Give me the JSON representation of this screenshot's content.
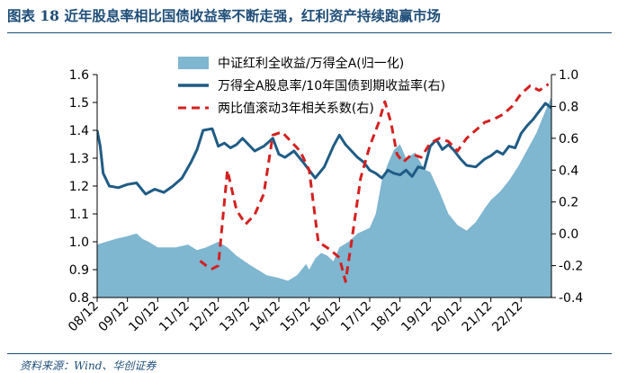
{
  "figure": {
    "title": "图表 18   近年股息率相比国债收益率不断走强，红利资产持续跑赢市场",
    "source": "资料来源：Wind、华创证券"
  },
  "colors": {
    "area": "#7fb6d0",
    "dividend_line": "#1f5c85",
    "correlation": "#d42020",
    "rule": "#1f4e79"
  },
  "chart_data": {
    "type": "area+line",
    "x_categories": [
      "08/12",
      "09/12",
      "10/12",
      "11/12",
      "12/12",
      "13/12",
      "14/12",
      "15/12",
      "16/12",
      "17/12",
      "18/12",
      "19/12",
      "20/12",
      "21/12",
      "22/12"
    ],
    "x_range": [
      0,
      15
    ],
    "y_left": {
      "min": 0.8,
      "max": 1.6,
      "step": 0.1,
      "ticks": [
        "0.8",
        "0.9",
        "1.0",
        "1.1",
        "1.2",
        "1.3",
        "1.4",
        "1.5",
        "1.6"
      ]
    },
    "y_right": {
      "min": -0.4,
      "max": 1.0,
      "step": 0.2,
      "ticks": [
        "-0.4",
        "-0.2",
        "0.0",
        "0.2",
        "0.4",
        "0.6",
        "0.8",
        "1.0"
      ]
    },
    "series": [
      {
        "name": "中证红利全收益/万得全A(归一化)",
        "type": "area",
        "axis": "left",
        "x": [
          0,
          0.3,
          0.6,
          1.0,
          1.3,
          1.5,
          1.7,
          2.0,
          2.3,
          2.6,
          3.0,
          3.3,
          3.6,
          4.0,
          4.3,
          4.6,
          5.0,
          5.3,
          5.6,
          6.0,
          6.3,
          6.6,
          6.9,
          7.0,
          7.2,
          7.4,
          7.6,
          7.8,
          8.0,
          8.3,
          8.6,
          9.0,
          9.2,
          9.4,
          9.6,
          9.8,
          10.0,
          10.2,
          10.5,
          10.8,
          11.0,
          11.3,
          11.6,
          11.9,
          12.2,
          12.5,
          12.8,
          13.0,
          13.3,
          13.6,
          13.9,
          14.2,
          14.5,
          14.8,
          15.0
        ],
        "y": [
          0.99,
          1.0,
          1.01,
          1.02,
          1.03,
          1.01,
          1.0,
          0.98,
          0.98,
          0.98,
          0.99,
          0.97,
          0.98,
          1.0,
          0.98,
          0.95,
          0.92,
          0.9,
          0.88,
          0.87,
          0.86,
          0.88,
          0.92,
          0.9,
          0.94,
          0.96,
          0.95,
          0.93,
          0.98,
          1.0,
          1.03,
          1.05,
          1.1,
          1.22,
          1.28,
          1.33,
          1.35,
          1.3,
          1.32,
          1.26,
          1.25,
          1.18,
          1.1,
          1.06,
          1.04,
          1.07,
          1.12,
          1.15,
          1.18,
          1.22,
          1.27,
          1.33,
          1.39,
          1.47,
          1.52
        ]
      },
      {
        "name": "万得全A股息率/10年国债到期收益率(右)",
        "type": "line",
        "axis": "right",
        "x": [
          0,
          0.1,
          0.2,
          0.4,
          0.7,
          1.0,
          1.3,
          1.6,
          1.9,
          2.2,
          2.5,
          2.8,
          3.1,
          3.3,
          3.5,
          3.8,
          4.0,
          4.2,
          4.4,
          4.6,
          4.8,
          5.0,
          5.2,
          5.5,
          5.8,
          6.0,
          6.2,
          6.5,
          6.8,
          7.0,
          7.2,
          7.5,
          7.8,
          8.0,
          8.2,
          8.4,
          8.6,
          8.8,
          9.0,
          9.2,
          9.4,
          9.6,
          9.8,
          10.0,
          10.2,
          10.4,
          10.6,
          10.8,
          11.0,
          11.2,
          11.4,
          11.6,
          11.8,
          12.0,
          12.2,
          12.5,
          12.8,
          13.0,
          13.2,
          13.4,
          13.6,
          13.8,
          14.0,
          14.2,
          14.4,
          14.6,
          14.8,
          15.0
        ],
        "y": [
          0.65,
          0.55,
          0.38,
          0.3,
          0.29,
          0.31,
          0.32,
          0.25,
          0.28,
          0.26,
          0.3,
          0.35,
          0.45,
          0.53,
          0.65,
          0.66,
          0.55,
          0.57,
          0.54,
          0.56,
          0.6,
          0.56,
          0.52,
          0.55,
          0.6,
          0.5,
          0.48,
          0.52,
          0.45,
          0.4,
          0.35,
          0.42,
          0.55,
          0.62,
          0.56,
          0.52,
          0.48,
          0.45,
          0.4,
          0.38,
          0.35,
          0.4,
          0.38,
          0.37,
          0.4,
          0.36,
          0.42,
          0.41,
          0.55,
          0.59,
          0.53,
          0.56,
          0.52,
          0.47,
          0.43,
          0.42,
          0.47,
          0.49,
          0.52,
          0.5,
          0.55,
          0.54,
          0.63,
          0.68,
          0.72,
          0.77,
          0.82,
          0.79
        ]
      },
      {
        "name": "两比值滚动3年相关系数(右)",
        "type": "line",
        "dashed": true,
        "axis": "right",
        "x": [
          3.4,
          3.6,
          3.8,
          4.0,
          4.3,
          4.6,
          4.9,
          5.2,
          5.5,
          5.8,
          6.1,
          6.4,
          6.7,
          7.0,
          7.3,
          7.7,
          8.0,
          8.2,
          8.4,
          8.7,
          9.0,
          9.3,
          9.5,
          9.7,
          9.9,
          10.1,
          10.4,
          10.7,
          11.0,
          11.3,
          11.6,
          11.9,
          12.2,
          12.5,
          12.8,
          13.1,
          13.4,
          13.7,
          14.0,
          14.3,
          14.6,
          14.9
        ],
        "y": [
          -0.17,
          -0.2,
          -0.22,
          -0.2,
          0.4,
          0.15,
          0.06,
          0.12,
          0.25,
          0.62,
          0.64,
          0.58,
          0.52,
          0.4,
          -0.05,
          -0.1,
          -0.15,
          -0.3,
          -0.05,
          0.35,
          0.55,
          0.7,
          0.83,
          0.7,
          0.5,
          0.45,
          0.5,
          0.48,
          0.57,
          0.6,
          0.58,
          0.52,
          0.6,
          0.65,
          0.7,
          0.72,
          0.75,
          0.8,
          0.88,
          0.93,
          0.9,
          0.94
        ]
      }
    ]
  }
}
